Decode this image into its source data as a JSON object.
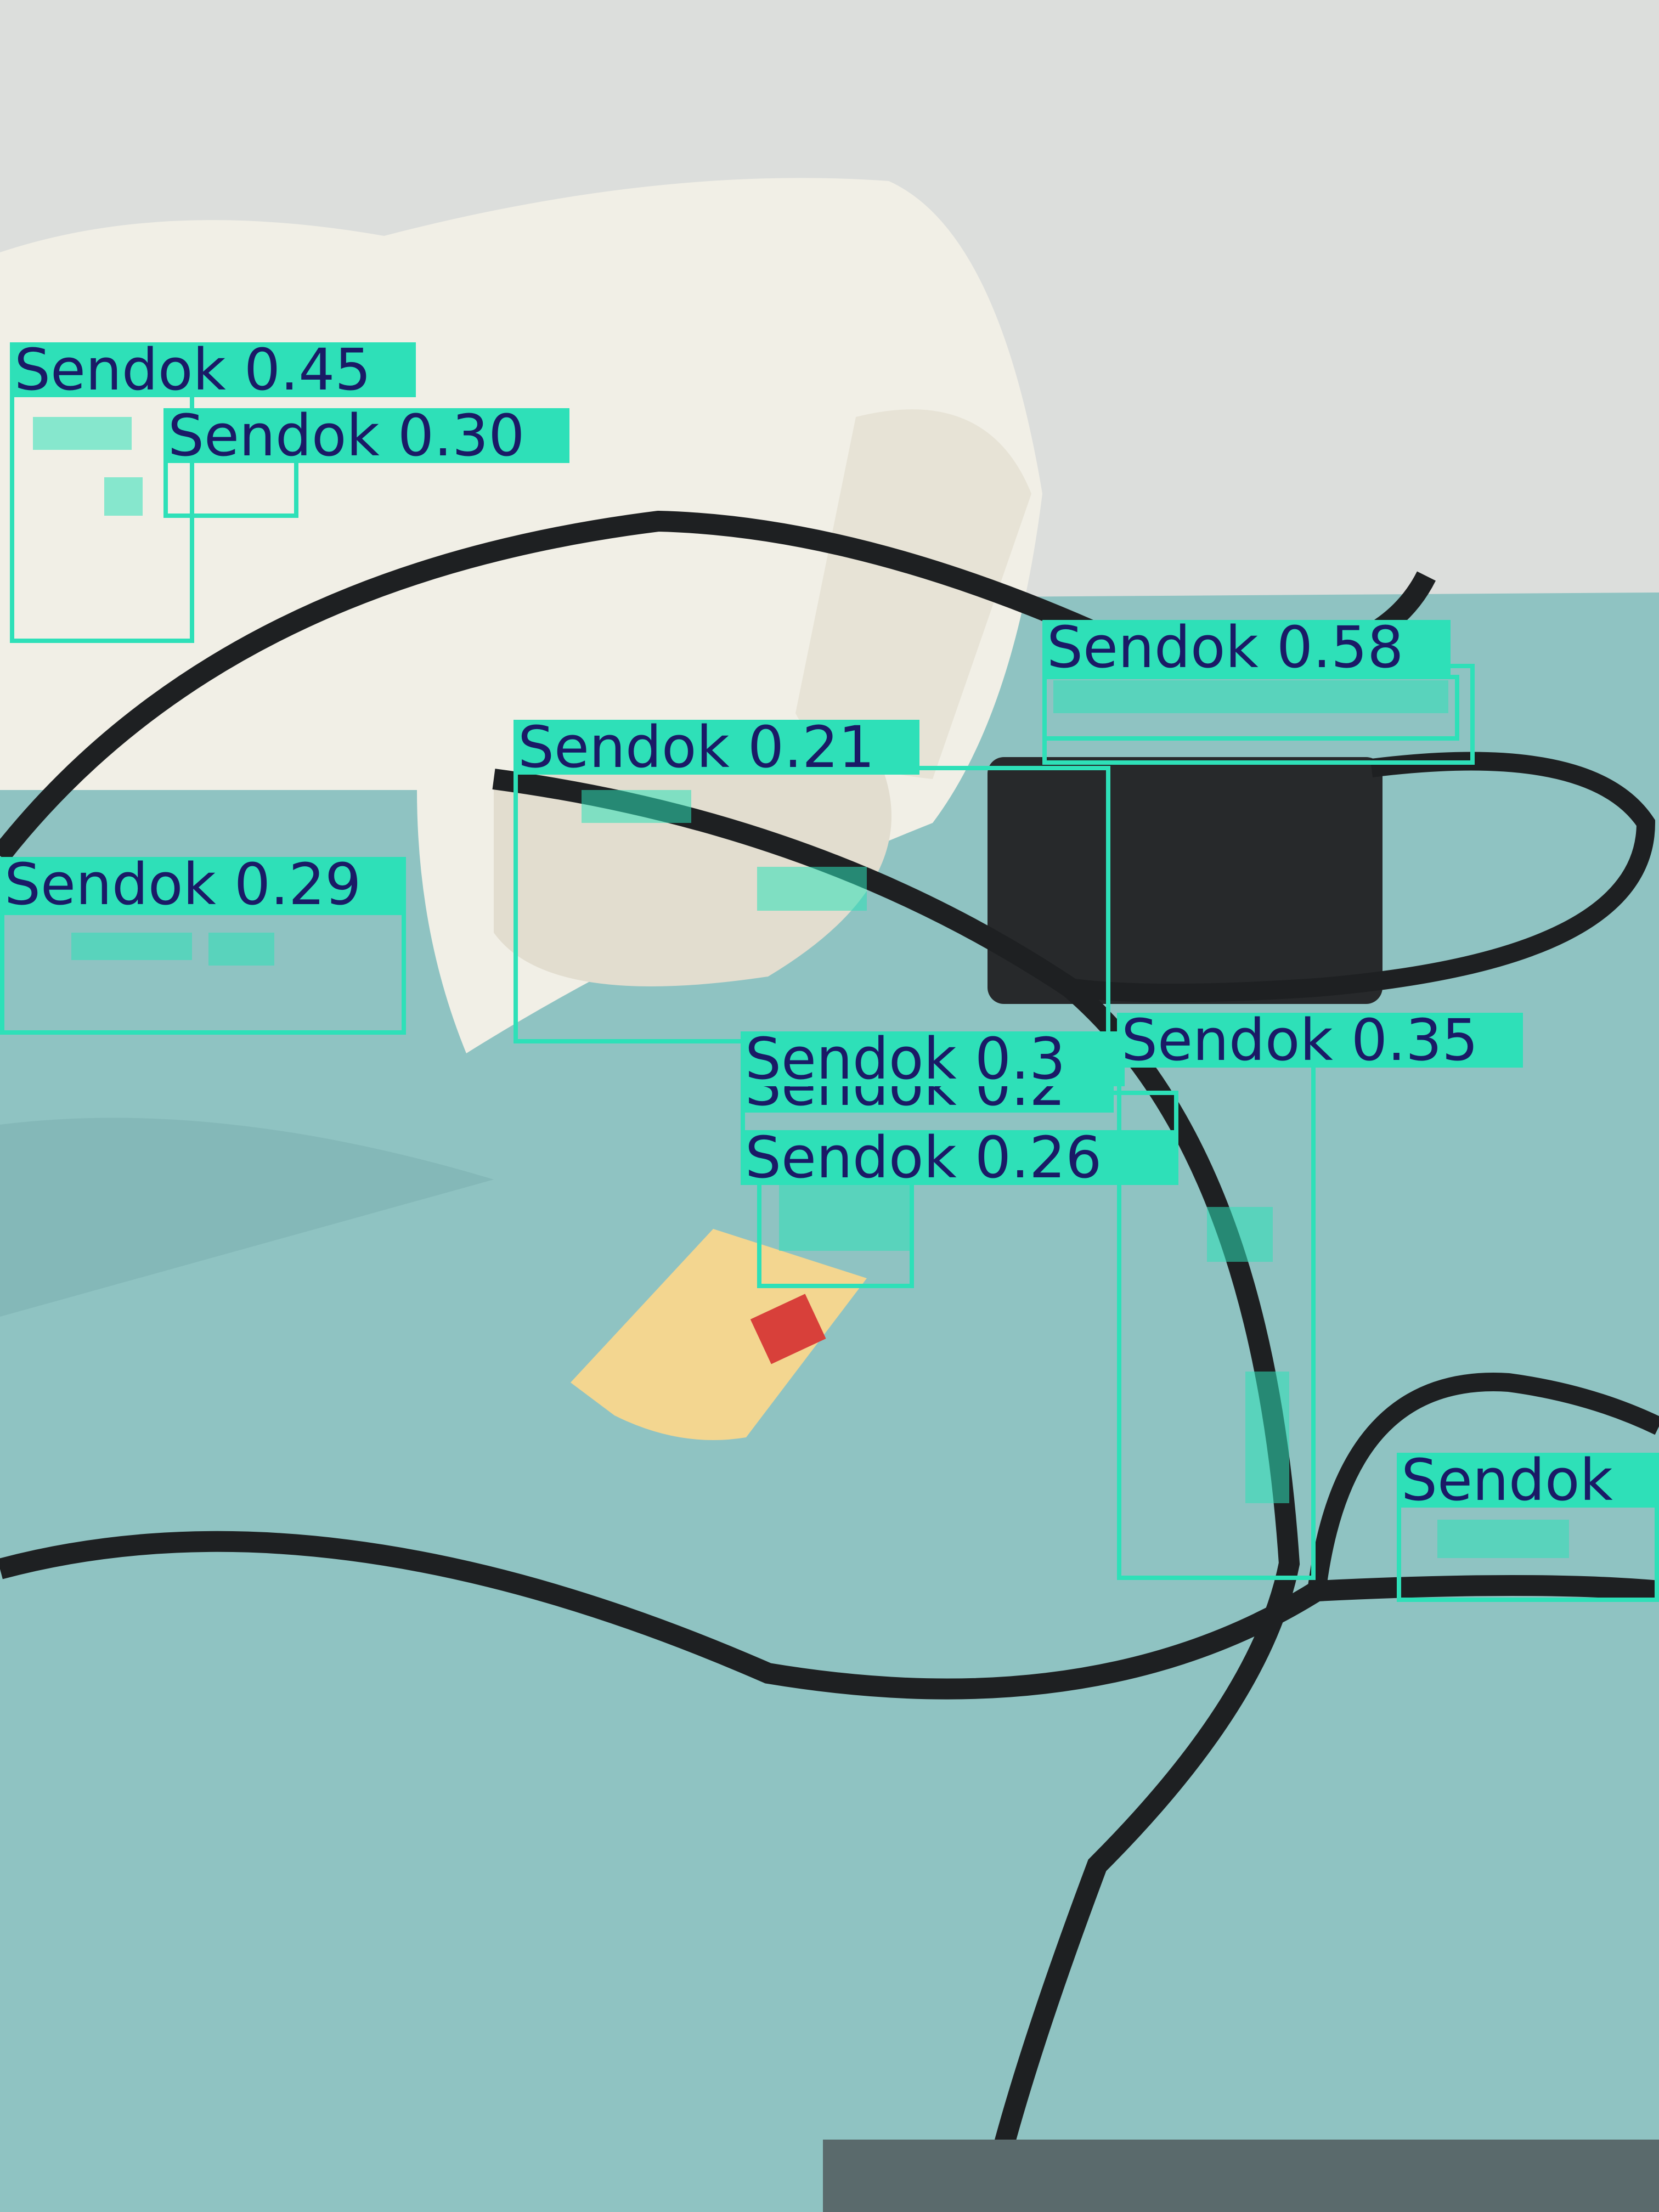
{
  "detections": [
    {
      "id": "d1",
      "class": "Sendok",
      "score": "0.45",
      "label": "Sendok 0.45"
    },
    {
      "id": "d2",
      "class": "Sendok",
      "score": "0.30",
      "label": "Sendok 0.30"
    },
    {
      "id": "d3",
      "class": "Sendok",
      "score": "0.58",
      "label": "Sendok 0.58"
    },
    {
      "id": "d4",
      "class": "Sendok",
      "score": "0.21",
      "label": "Sendok 0.21"
    },
    {
      "id": "d5",
      "class": "Sendok",
      "score": "0.29",
      "label": "Sendok 0.29"
    },
    {
      "id": "d6",
      "class": "Sendok",
      "score": "0.3",
      "label": "Sendok 0.3"
    },
    {
      "id": "d7",
      "class": "Sendok",
      "score": "0.2",
      "label": "Sendok 0.2"
    },
    {
      "id": "d8",
      "class": "Sendok",
      "score": "0.35",
      "label": "Sendok 0.35"
    },
    {
      "id": "d9",
      "class": "Sendok",
      "score": "0.26",
      "label": "Sendok 0.26"
    },
    {
      "id": "d10",
      "class": "Sendok",
      "score": "",
      "label": "Sendok"
    }
  ],
  "colors": {
    "box": "#2ee0b8",
    "label_text": "#1a1a66"
  }
}
